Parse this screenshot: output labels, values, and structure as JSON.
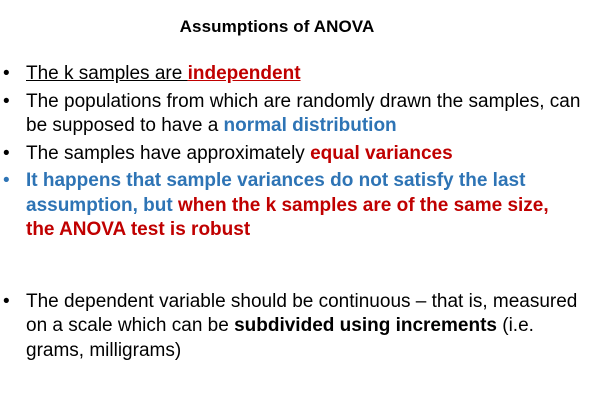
{
  "title": "Assumptions of ANOVA",
  "bullet_glyph": "•",
  "bullets": [
    {
      "part1": "The k samples are ",
      "part2": "independent"
    },
    {
      "part1": "The populations from which are randomly drawn the samples, can be supposed to have a ",
      "part2": "normal distribution"
    },
    {
      "part1": "The samples have approximately ",
      "part2": "equal variances"
    },
    {
      "part1": "It happens that sample variances do not satisfy the last assumption, but ",
      "part2": "when the k samples are of the same size, the ANOVA test is robust"
    },
    {
      "part1": "The dependent variable should be continuous – that is, measured on a scale which can be ",
      "part2": "subdivided using increments",
      "part3": " (i.e. grams, milligrams)"
    }
  ],
  "colors": {
    "red": "#c00000",
    "blue": "#2e74b5",
    "text": "#000000"
  }
}
